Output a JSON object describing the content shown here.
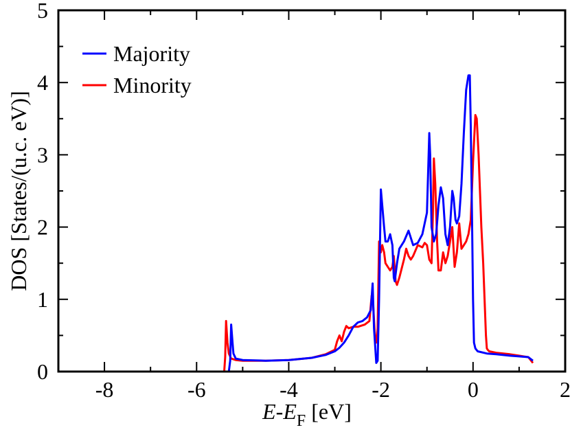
{
  "chart_data": {
    "type": "line",
    "title": "",
    "xlabel": {
      "italic_main": "E",
      "dash": "-",
      "italic_sub_base": "E",
      "subscript": "F",
      "unit": " [eV]"
    },
    "ylabel": "DOS [States/(u.c. eV)]",
    "xlim": [
      -9,
      2
    ],
    "ylim": [
      0,
      5
    ],
    "xticks": [
      -8,
      -6,
      -4,
      -2,
      0,
      2
    ],
    "xtick_labels": [
      "-8",
      "-6",
      "-4",
      "-2",
      "0",
      "2"
    ],
    "yticks": [
      0,
      1,
      2,
      3,
      4,
      5
    ],
    "ytick_labels": [
      "0",
      "1",
      "2",
      "3",
      "4",
      "5"
    ],
    "legend_position": "top-left",
    "series": [
      {
        "name": "Majority",
        "color": "#0000ff",
        "x": [
          -5.3,
          -5.27,
          -5.25,
          -5.22,
          -5.2,
          -5.15,
          -5.0,
          -4.5,
          -4.0,
          -3.5,
          -3.2,
          -3.0,
          -2.9,
          -2.8,
          -2.7,
          -2.6,
          -2.5,
          -2.4,
          -2.3,
          -2.22,
          -2.18,
          -2.15,
          -2.1,
          -2.07,
          -2.04,
          -2.0,
          -1.97,
          -1.93,
          -1.9,
          -1.85,
          -1.8,
          -1.75,
          -1.72,
          -1.7,
          -1.65,
          -1.6,
          -1.5,
          -1.4,
          -1.3,
          -1.2,
          -1.1,
          -1.0,
          -0.95,
          -0.93,
          -0.9,
          -0.85,
          -0.8,
          -0.75,
          -0.7,
          -0.65,
          -0.6,
          -0.55,
          -0.5,
          -0.45,
          -0.42,
          -0.38,
          -0.35,
          -0.3,
          -0.25,
          -0.2,
          -0.15,
          -0.1,
          -0.07,
          -0.05,
          -0.02,
          0.0,
          0.02,
          0.05,
          0.1,
          0.3,
          0.5,
          0.8,
          1.0,
          1.2,
          1.3
        ],
        "y": [
          0.0,
          0.15,
          0.65,
          0.4,
          0.25,
          0.18,
          0.16,
          0.15,
          0.16,
          0.19,
          0.23,
          0.28,
          0.33,
          0.4,
          0.5,
          0.62,
          0.68,
          0.7,
          0.75,
          0.85,
          1.22,
          0.6,
          0.12,
          0.15,
          1.0,
          2.52,
          2.3,
          2.0,
          1.8,
          1.8,
          1.9,
          1.75,
          1.3,
          1.25,
          1.5,
          1.7,
          1.8,
          1.95,
          1.75,
          1.78,
          1.9,
          2.2,
          3.3,
          3.0,
          2.0,
          1.8,
          1.9,
          2.3,
          2.55,
          2.4,
          1.9,
          1.75,
          2.0,
          2.5,
          2.4,
          2.1,
          2.05,
          2.15,
          2.6,
          3.3,
          3.9,
          4.1,
          4.1,
          3.4,
          2.0,
          1.0,
          0.4,
          0.32,
          0.28,
          0.25,
          0.24,
          0.22,
          0.21,
          0.2,
          0.15
        ]
      },
      {
        "name": "Minority",
        "color": "#ff0000",
        "x": [
          -5.4,
          -5.38,
          -5.36,
          -5.33,
          -5.3,
          -5.25,
          -5.15,
          -5.0,
          -4.5,
          -4.0,
          -3.5,
          -3.2,
          -3.0,
          -2.95,
          -2.9,
          -2.85,
          -2.8,
          -2.75,
          -2.7,
          -2.6,
          -2.5,
          -2.35,
          -2.25,
          -2.2,
          -2.17,
          -2.13,
          -2.1,
          -2.07,
          -2.04,
          -2.0,
          -1.97,
          -1.93,
          -1.9,
          -1.85,
          -1.8,
          -1.75,
          -1.72,
          -1.68,
          -1.65,
          -1.6,
          -1.5,
          -1.45,
          -1.4,
          -1.35,
          -1.3,
          -1.2,
          -1.1,
          -1.05,
          -1.0,
          -0.95,
          -0.9,
          -0.87,
          -0.85,
          -0.82,
          -0.78,
          -0.75,
          -0.7,
          -0.65,
          -0.6,
          -0.55,
          -0.5,
          -0.45,
          -0.4,
          -0.35,
          -0.3,
          -0.25,
          -0.2,
          -0.15,
          -0.1,
          -0.05,
          0.0,
          0.05,
          0.08,
          0.12,
          0.15,
          0.18,
          0.22,
          0.25,
          0.28,
          0.3,
          0.32,
          0.35,
          0.5,
          0.8,
          1.0,
          1.2,
          1.3
        ],
        "y": [
          0.0,
          0.2,
          0.7,
          0.4,
          0.25,
          0.18,
          0.16,
          0.15,
          0.15,
          0.16,
          0.19,
          0.24,
          0.3,
          0.42,
          0.5,
          0.42,
          0.55,
          0.63,
          0.6,
          0.62,
          0.62,
          0.65,
          0.7,
          1.05,
          0.95,
          0.5,
          0.4,
          0.6,
          1.8,
          1.65,
          1.75,
          1.65,
          1.5,
          1.45,
          1.4,
          1.45,
          1.6,
          1.25,
          1.2,
          1.3,
          1.55,
          1.7,
          1.6,
          1.55,
          1.6,
          1.75,
          1.72,
          1.78,
          1.75,
          1.55,
          1.5,
          2.2,
          2.95,
          2.6,
          1.8,
          1.4,
          1.4,
          1.65,
          1.5,
          1.6,
          1.8,
          2.0,
          1.45,
          1.65,
          2.05,
          1.7,
          1.75,
          1.8,
          1.9,
          2.1,
          2.9,
          3.55,
          3.5,
          3.0,
          2.5,
          2.0,
          1.5,
          1.0,
          0.5,
          0.32,
          0.3,
          0.28,
          0.26,
          0.24,
          0.22,
          0.2,
          0.12
        ]
      }
    ]
  }
}
